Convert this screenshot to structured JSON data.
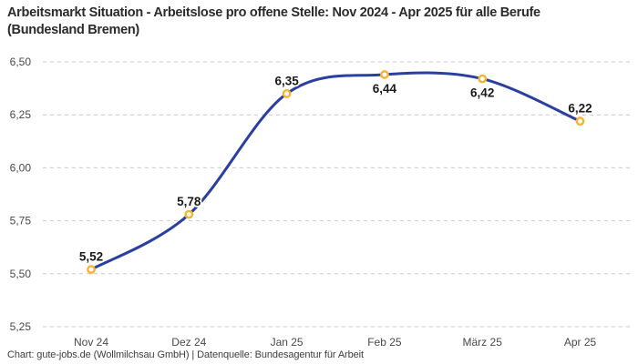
{
  "title": "Arbeitsmarkt Situation - Arbeitslose pro offene Stelle: Nov 2024 - Apr 2025 für alle Berufe (Bundesland Bremen)",
  "footer": "Chart: gute-jobs.de (Wollmilchsau GmbH) | Datenquelle: Bundesagentur für Arbeit",
  "chart_data": {
    "type": "line",
    "title": "Arbeitsmarkt Situation - Arbeitslose pro offene Stelle: Nov 2024 - Apr 2025 für alle Berufe (Bundesland Bremen)",
    "xlabel": "",
    "ylabel": "",
    "categories": [
      "Nov 24",
      "Dez 24",
      "Jan 25",
      "Feb 25",
      "März 25",
      "Apr 25"
    ],
    "series": [
      {
        "name": "Arbeitslose pro offene Stelle",
        "values": [
          5.52,
          5.78,
          6.35,
          6.44,
          6.42,
          6.22
        ],
        "value_labels": [
          "5,52",
          "5,78",
          "6,35",
          "6,44",
          "6,42",
          "6,22"
        ],
        "label_side": [
          "above",
          "above",
          "above",
          "below",
          "below",
          "above"
        ]
      }
    ],
    "ylim": [
      5.25,
      6.5
    ],
    "y_ticks": [
      6.5,
      6.25,
      6.0,
      5.75,
      5.5,
      5.25
    ],
    "y_tick_labels": [
      "6,50",
      "6,25",
      "6,00",
      "5,75",
      "5,50",
      "5,25"
    ],
    "grid": "horizontal-dashed",
    "legend_position": "none",
    "line_smoothing": "spline",
    "colors": {
      "line": "#2a3f9f",
      "marker_ring": "#f8b32d",
      "marker_fill": "#ffffff",
      "grid": "#c9c9c9",
      "axis_text": "#494949",
      "value_label_text": "#1a1a1a",
      "title_text": "#2b2b2b",
      "footer_text": "#3d3d3d",
      "background": "#ffffff"
    }
  }
}
